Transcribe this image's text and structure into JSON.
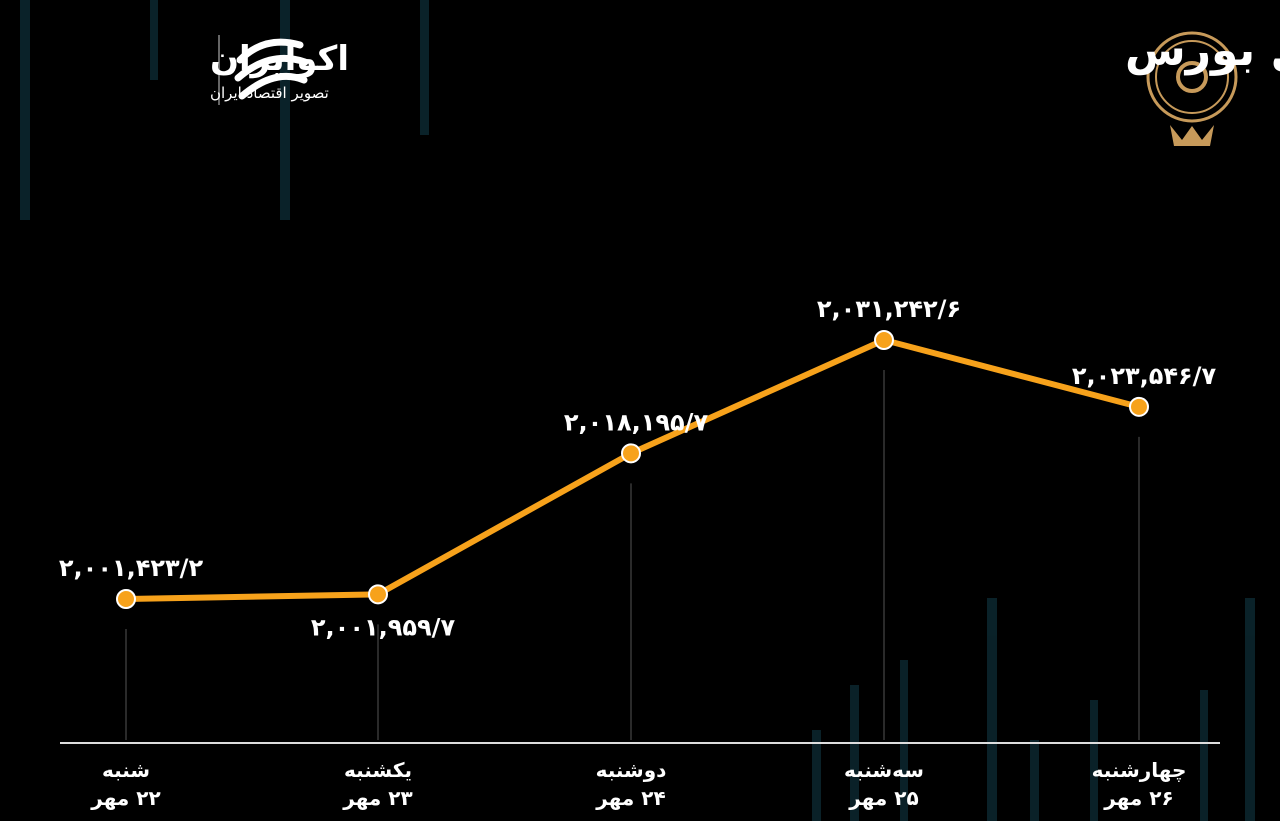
{
  "chart_data": {
    "type": "line",
    "title": "روند هفته شاخص کل بورس",
    "brand": "اکوایران",
    "brand_tagline": "تصویر اقتصاد ایران",
    "categories": [
      "شنبه",
      "یکشنبه",
      "دوشنبه",
      "سه‌شنبه",
      "چهارشنبه"
    ],
    "category_dates": [
      "۲۲ مهر",
      "۲۳ مهر",
      "۲۴ مهر",
      "۲۵ مهر",
      "۲۶ مهر"
    ],
    "values": [
      2001423.2,
      2001959.7,
      2018195.7,
      2031242.6,
      2023546.7
    ],
    "value_labels": [
      "۲,۰۰۱,۴۲۳/۲",
      "۲,۰۰۱,۹۵۹/۷",
      "۲,۰۱۸,۱۹۵/۷",
      "۲,۰۳۱,۲۴۲/۶",
      "۲,۰۲۳,۵۴۶/۷"
    ],
    "color": "#f7a21b"
  }
}
